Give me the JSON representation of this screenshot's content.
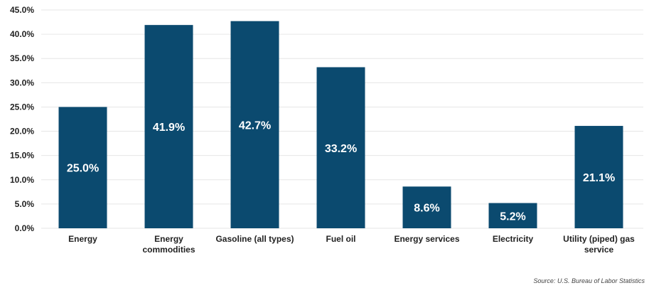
{
  "chart_data": {
    "type": "bar",
    "categories": [
      [
        "Energy"
      ],
      [
        "Energy",
        "commodities"
      ],
      [
        "Gasoline (all types)"
      ],
      [
        "Fuel oil"
      ],
      [
        "Energy services"
      ],
      [
        "Electricity"
      ],
      [
        "Utility (piped) gas",
        "service"
      ]
    ],
    "values": [
      25.0,
      41.9,
      42.7,
      33.2,
      8.6,
      5.2,
      21.1
    ],
    "data_labels": [
      "25.0%",
      "41.9%",
      "42.7%",
      "33.2%",
      "8.6%",
      "5.2%",
      "21.1%"
    ],
    "y_ticks": [
      "0.0%",
      "5.0%",
      "10.0%",
      "15.0%",
      "20.0%",
      "25.0%",
      "30.0%",
      "35.0%",
      "40.0%",
      "45.0%"
    ],
    "ylim": [
      0,
      45
    ],
    "grid": true,
    "legend": "none",
    "bar_color": "#0b4a6f",
    "grid_color": "#e6e6e6",
    "source": "Source: U.S. Bureau of Labor Statistics"
  }
}
